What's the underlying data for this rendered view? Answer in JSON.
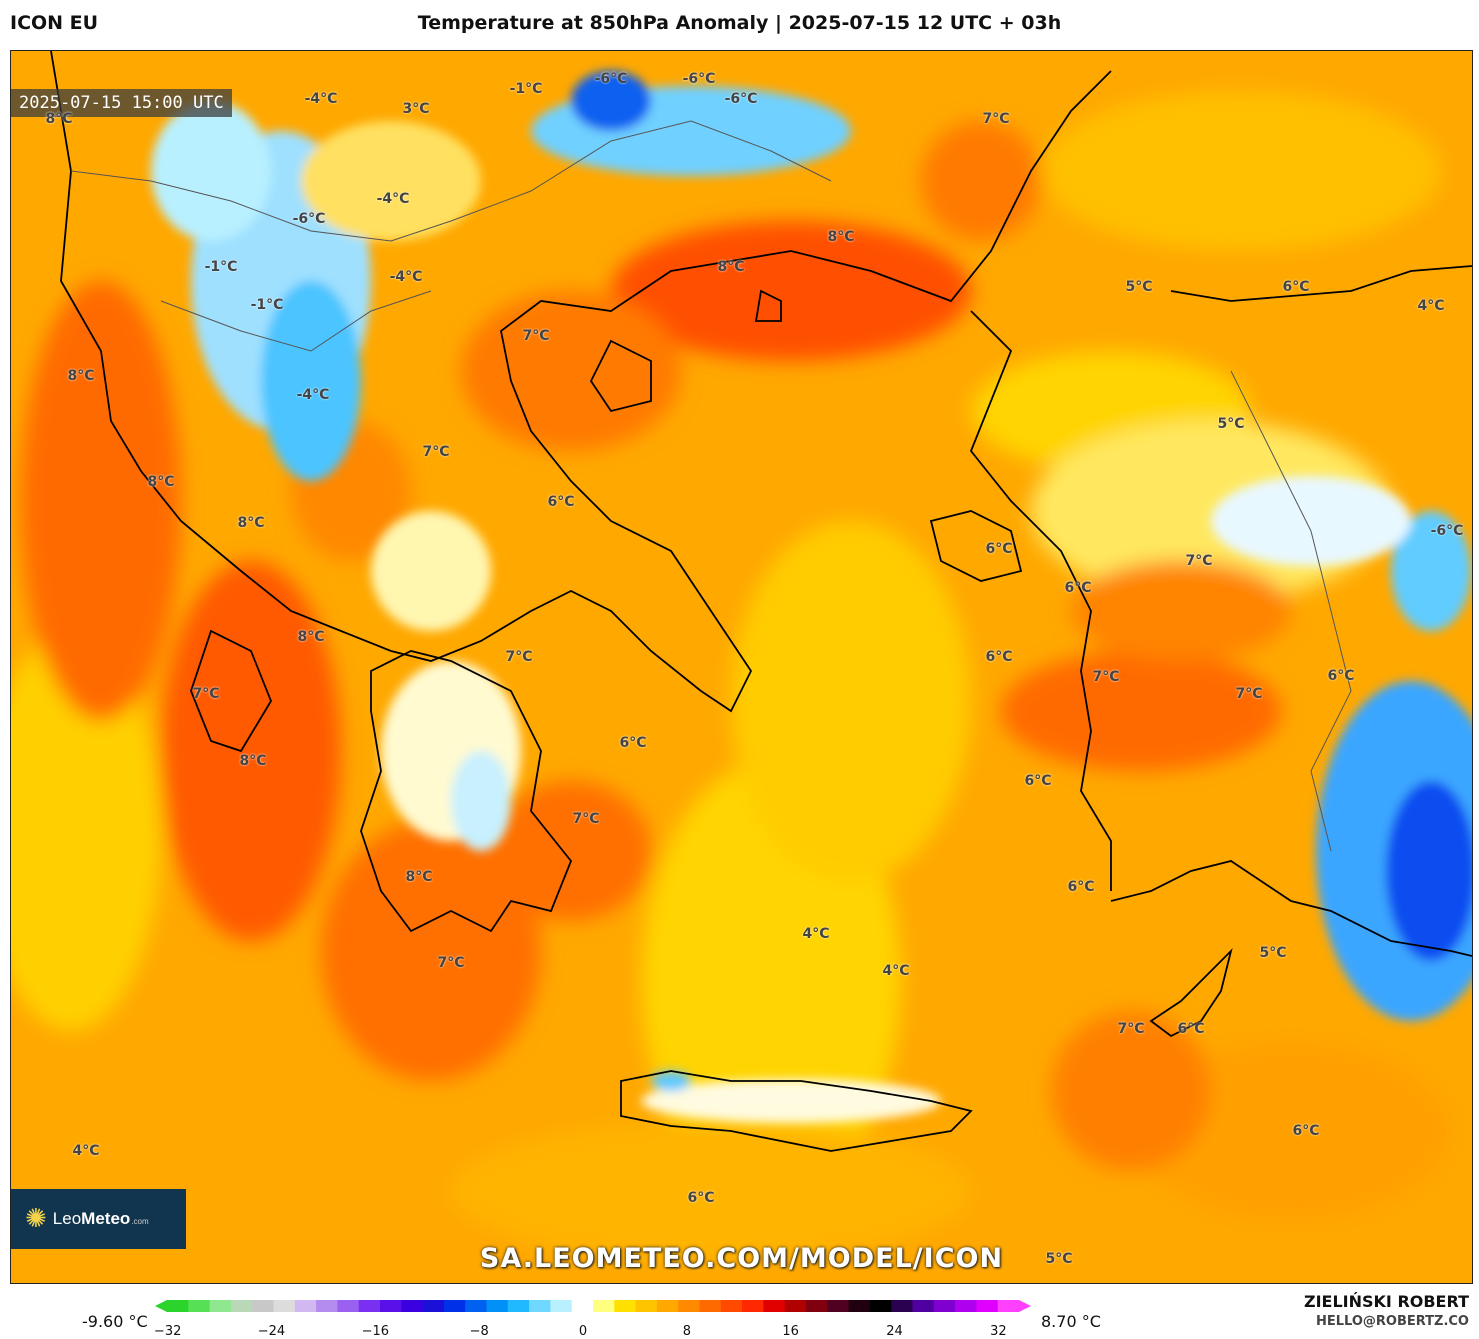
{
  "header": {
    "model": "ICON EU",
    "title": "Temperature at 850hPa Anomaly | 2025-07-15 12 UTC + 03h"
  },
  "map": {
    "valid_time": "2025-07-15 15:00 UTC",
    "labels": [
      {
        "text": "8°C",
        "lon_lat": "upper-left"
      },
      {
        "text": "-4°C"
      },
      {
        "text": "3°C"
      },
      {
        "text": "-1°C"
      },
      {
        "text": "-6°C"
      },
      {
        "text": "-6°C"
      },
      {
        "text": "-6°C"
      },
      {
        "text": "7°C"
      },
      {
        "text": "-6°C"
      },
      {
        "text": "-4°C"
      },
      {
        "text": "8°C"
      },
      {
        "text": "-1°C"
      },
      {
        "text": "8°C"
      },
      {
        "text": "-4°C"
      },
      {
        "text": "-1°C"
      },
      {
        "text": "5°C"
      },
      {
        "text": "6°C"
      },
      {
        "text": "4°C"
      },
      {
        "text": "7°C"
      },
      {
        "text": "8°C"
      },
      {
        "text": "-4°C"
      },
      {
        "text": "5°C"
      },
      {
        "text": "7°C"
      },
      {
        "text": "8°C"
      },
      {
        "text": "6°C"
      },
      {
        "text": "8°C"
      },
      {
        "text": "6°C"
      },
      {
        "text": "7°C"
      },
      {
        "text": "-6°C"
      },
      {
        "text": "6°C"
      },
      {
        "text": "8°C"
      },
      {
        "text": "7°C"
      },
      {
        "text": "6°C"
      },
      {
        "text": "7°C"
      },
      {
        "text": "7°C"
      },
      {
        "text": "6°C"
      },
      {
        "text": "7°C"
      },
      {
        "text": "6°C"
      },
      {
        "text": "8°C"
      },
      {
        "text": "6°C"
      },
      {
        "text": "7°C"
      },
      {
        "text": "8°C"
      },
      {
        "text": "6°C"
      },
      {
        "text": "4°C"
      },
      {
        "text": "7°C"
      },
      {
        "text": "4°C"
      },
      {
        "text": "5°C"
      },
      {
        "text": "7°C"
      },
      {
        "text": "6°C"
      },
      {
        "text": "6°C"
      },
      {
        "text": "4°C"
      },
      {
        "text": "6°C"
      },
      {
        "text": "5°C"
      }
    ],
    "watermark": "SA.LEOMETEO.COM/MODEL/ICON",
    "logo": {
      "part1": "Leo",
      "part2": "Meteo",
      "suffix": ".com"
    }
  },
  "legend": {
    "min_label": "-9.60 °C",
    "max_label": "8.70 °C",
    "ticks": [
      "−32",
      "−24",
      "−16",
      "−8",
      "0",
      "8",
      "16",
      "24",
      "32"
    ],
    "colors": [
      "#2ad42a",
      "#55e055",
      "#8fe88f",
      "#b8d8b8",
      "#c8c8c8",
      "#dcdcdc",
      "#d2b8f0",
      "#b48cf0",
      "#9a60f0",
      "#7a30f0",
      "#5a10e8",
      "#3a00e0",
      "#1a10d8",
      "#0030e8",
      "#0060f0",
      "#0090f8",
      "#20b8ff",
      "#70d8ff",
      "#b8f0ff",
      "#ffffff",
      "#ffff80",
      "#ffe000",
      "#ffc400",
      "#ffa800",
      "#ff8a00",
      "#ff6a00",
      "#ff4a00",
      "#ff2800",
      "#e00000",
      "#b00000",
      "#800010",
      "#500020",
      "#200010",
      "#000000",
      "#2a0050",
      "#5000a0",
      "#8000d0",
      "#b000f0",
      "#e000ff",
      "#ff40ff"
    ]
  },
  "credits": {
    "author": "ZIELIŃSKI ROBERT",
    "email": "HELLO@ROBERTZ.CO"
  }
}
